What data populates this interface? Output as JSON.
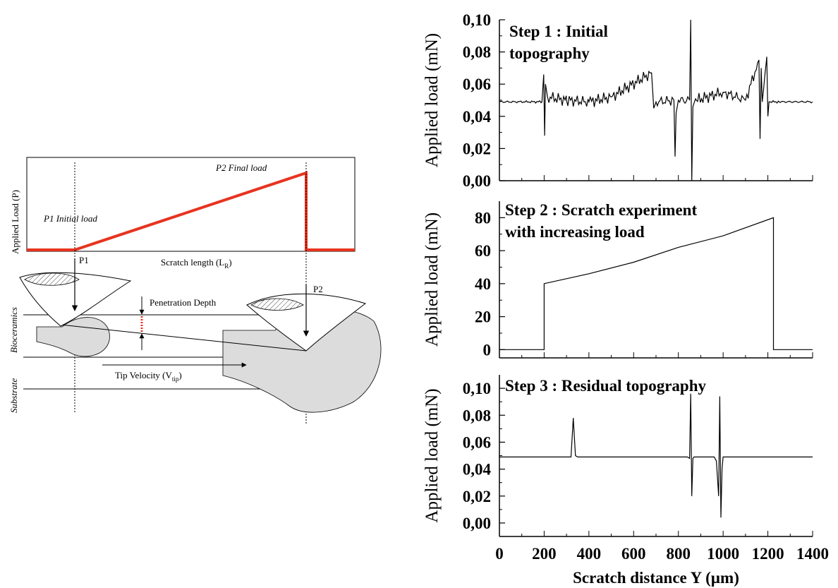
{
  "colors": {
    "load_curve": "#e8331f",
    "soft_tissue": "#dcdcdc",
    "axis": "#000000"
  },
  "diagram": {
    "y_axis_label": "Applied Load (P)",
    "x_axis_label": "Scratch length (L",
    "x_axis_label_sub": "R",
    "x_axis_label_end": ")",
    "initial_load_label": "P1 Initial load",
    "final_load_label": "P2 Final load",
    "p1_label": "P1",
    "p2_label": "P2",
    "penetration_label": "Penetration Depth",
    "velocity_label": "Tip Velocity (V",
    "velocity_sub": "tip",
    "velocity_end": ")",
    "layer_bioceramics": "Bioceramics",
    "layer_substrate": "Substrate"
  },
  "chart_data": [
    {
      "type": "line",
      "title": "Step 1 : Initial topography",
      "title_lines": [
        "Step 1 : Initial",
        "topography"
      ],
      "ylabel": "Applied load (mN)",
      "xlabel": "",
      "xlim": [
        0,
        1400
      ],
      "ylim": [
        0.0,
        0.1
      ],
      "yticks": [
        "0,00",
        "0,02",
        "0,04",
        "0,06",
        "0,08",
        "0,10"
      ],
      "series": [
        {
          "baseline": 0.049,
          "x": [
            0,
            190,
            198,
            202,
            206,
            215,
            300,
            400,
            500,
            680,
            690,
            700,
            780,
            785,
            790,
            800,
            850,
            855,
            860,
            865,
            880,
            1000,
            1100,
            1160,
            1165,
            1170,
            1175,
            1195,
            1200,
            1205,
            1250,
            1400
          ],
          "y": [
            0.049,
            0.049,
            0.066,
            0.028,
            0.06,
            0.052,
            0.05,
            0.049,
            0.052,
            0.067,
            0.045,
            0.049,
            0.05,
            0.015,
            0.042,
            0.05,
            0.05,
            0.1,
            0.0,
            0.046,
            0.05,
            0.055,
            0.05,
            0.075,
            0.026,
            0.07,
            0.049,
            0.077,
            0.04,
            0.049,
            0.049,
            0.049
          ]
        }
      ]
    },
    {
      "type": "line",
      "title": "Step 2 : Scratch experiment with increasing load",
      "title_lines": [
        "Step 2 : Scratch experiment",
        "with increasing load"
      ],
      "ylabel": "Applied load (mN)",
      "xlabel": "",
      "xlim": [
        0,
        1400
      ],
      "ylim": [
        -5,
        90
      ],
      "yticks": [
        "0",
        "20",
        "40",
        "60",
        "80"
      ],
      "series": [
        {
          "x": [
            0,
            200,
            200,
            400,
            600,
            800,
            1000,
            1225,
            1225,
            1400
          ],
          "y": [
            0,
            0,
            40,
            46,
            53,
            62,
            69,
            80,
            0,
            0
          ]
        }
      ]
    },
    {
      "type": "line",
      "title": "Step 3 : Residual topography",
      "title_lines": [
        "Step 3 : Residual topography"
      ],
      "ylabel": "Applied load (mN)",
      "xlabel": "Scratch distance Y (µm)",
      "xlim": [
        0,
        1400
      ],
      "ylim": [
        -0.01,
        0.11
      ],
      "yticks": [
        "0,00",
        "0,02",
        "0,04",
        "0,06",
        "0,08",
        "0,10"
      ],
      "xticks": [
        "0",
        "200",
        "400",
        "600",
        "800",
        "1000",
        "1200",
        "1400"
      ],
      "series": [
        {
          "x": [
            0,
            320,
            330,
            340,
            350,
            840,
            850,
            855,
            860,
            865,
            870,
            960,
            970,
            980,
            985,
            990,
            995,
            1000,
            1010,
            1400
          ],
          "y": [
            0.049,
            0.049,
            0.078,
            0.05,
            0.049,
            0.049,
            0.048,
            0.096,
            0.02,
            0.048,
            0.049,
            0.049,
            0.046,
            0.02,
            0.094,
            0.004,
            0.04,
            0.049,
            0.049,
            0.049
          ]
        }
      ]
    }
  ]
}
